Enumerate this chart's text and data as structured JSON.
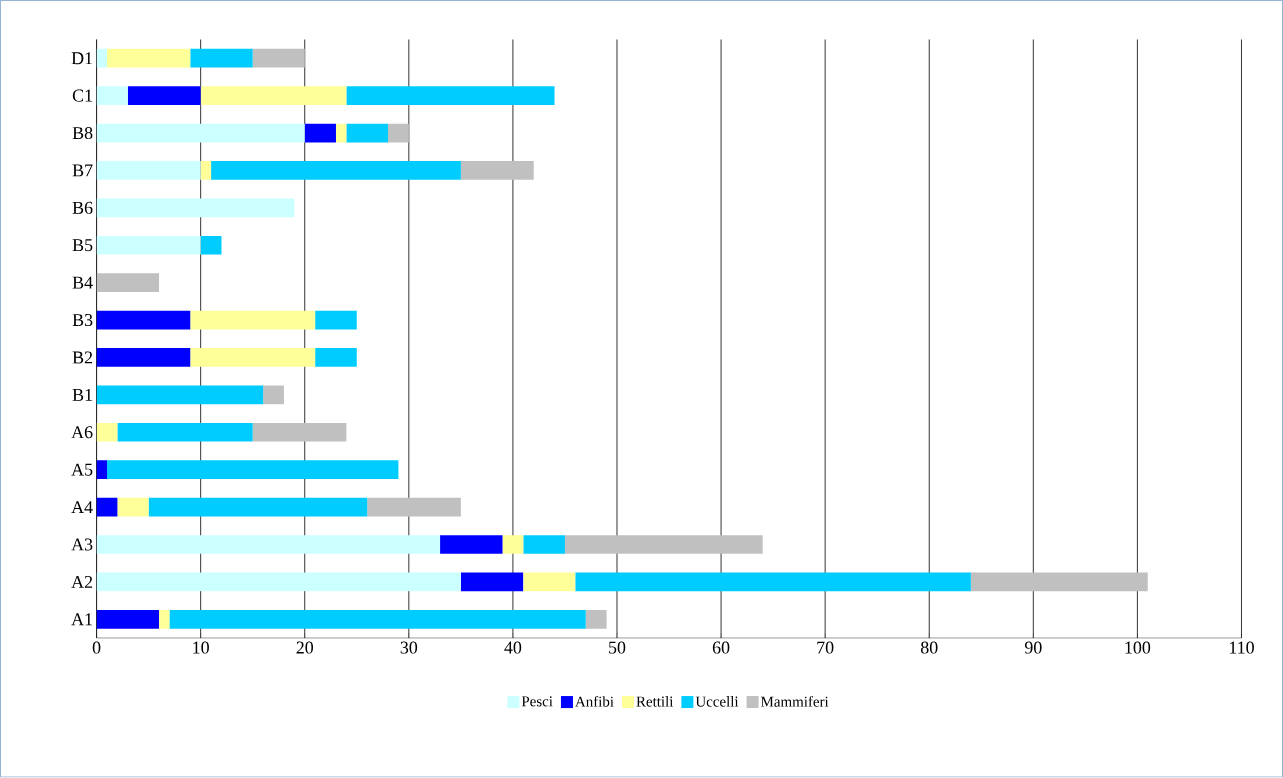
{
  "chart_data": {
    "type": "bar",
    "orientation": "horizontal",
    "stacked": true,
    "categories": [
      "D1",
      "C1",
      "B8",
      "B7",
      "B6",
      "B5",
      "B4",
      "B3",
      "B2",
      "B1",
      "A6",
      "A5",
      "A4",
      "A3",
      "A2",
      "A1"
    ],
    "series": [
      {
        "name": "Pesci",
        "color": "#ccffff",
        "values": [
          1,
          3,
          20,
          10,
          19,
          10,
          0,
          0,
          0,
          0,
          0,
          0,
          0,
          33,
          35,
          0
        ]
      },
      {
        "name": "Anfibi",
        "color": "#0000ff",
        "values": [
          0,
          7,
          3,
          0,
          0,
          0,
          0,
          9,
          9,
          0,
          0,
          1,
          2,
          6,
          6,
          6
        ]
      },
      {
        "name": "Rettili",
        "color": "#ffff99",
        "values": [
          8,
          14,
          1,
          1,
          0,
          0,
          0,
          12,
          12,
          0,
          2,
          0,
          3,
          2,
          5,
          1
        ]
      },
      {
        "name": "Uccelli",
        "color": "#00ccff",
        "values": [
          6,
          20,
          4,
          24,
          0,
          2,
          0,
          4,
          4,
          16,
          13,
          28,
          21,
          4,
          38,
          40
        ]
      },
      {
        "name": "Mammiferi",
        "color": "#c0c0c0",
        "values": [
          5,
          0,
          2,
          7,
          0,
          0,
          6,
          0,
          0,
          2,
          9,
          0,
          9,
          19,
          17,
          2
        ]
      }
    ],
    "xlim": [
      0,
      110
    ],
    "xticks": [
      0,
      10,
      20,
      30,
      40,
      50,
      60,
      70,
      80,
      90,
      100,
      110
    ],
    "grid": "x",
    "legend": "bottom"
  }
}
